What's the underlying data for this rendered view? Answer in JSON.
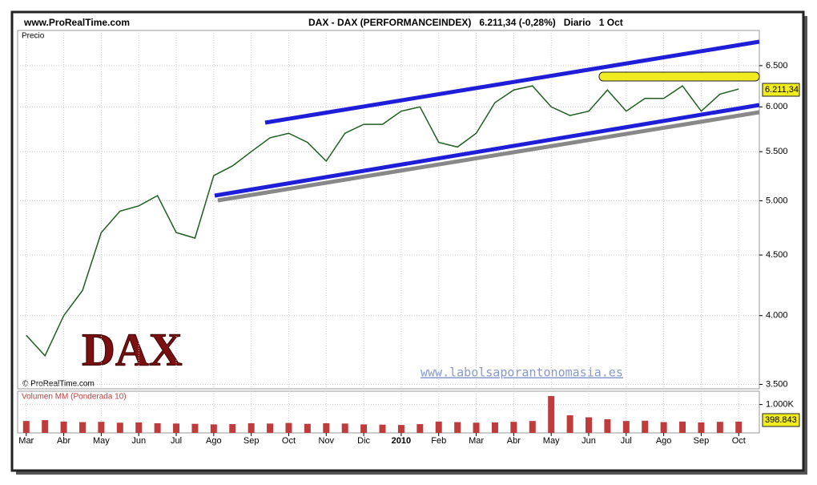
{
  "header": {
    "site": "www.ProRealTime.com",
    "title": "DAX - DAX (PERFORMANCEINDEX)   6.211,34 (-0,28%)   Diario   1 Oct"
  },
  "watermark": {
    "big": "DAX",
    "url": "www.labolsaporantonomasia.es",
    "copyright": "© ProRealTime.com"
  },
  "chart_data": [
    {
      "type": "line",
      "title": "Precio",
      "log_scale": true,
      "grid": true,
      "xlim": [
        -0.23,
        19.55
      ],
      "ylim": [
        3470,
        6960
      ],
      "xticks": [
        {
          "value": 0,
          "label": "Mar"
        },
        {
          "value": 1,
          "label": "Abr"
        },
        {
          "value": 2,
          "label": "May"
        },
        {
          "value": 3,
          "label": "Jun"
        },
        {
          "value": 4,
          "label": "Jul"
        },
        {
          "value": 5,
          "label": "Ago"
        },
        {
          "value": 6,
          "label": "Sep"
        },
        {
          "value": 7,
          "label": "Oct"
        },
        {
          "value": 8,
          "label": "Nov"
        },
        {
          "value": 9,
          "label": "Dic"
        },
        {
          "value": 10,
          "label": "2010"
        },
        {
          "value": 11,
          "label": "Feb"
        },
        {
          "value": 12,
          "label": "Mar"
        },
        {
          "value": 13,
          "label": "Abr"
        },
        {
          "value": 14,
          "label": "May"
        },
        {
          "value": 15,
          "label": "Jun"
        },
        {
          "value": 16,
          "label": "Jul"
        },
        {
          "value": 17,
          "label": "Ago"
        },
        {
          "value": 18,
          "label": "Sep"
        },
        {
          "value": 19,
          "label": "Oct"
        }
      ],
      "yticks": [
        {
          "value": 3500,
          "label": "3.500"
        },
        {
          "value": 4000,
          "label": "4.000"
        },
        {
          "value": 4500,
          "label": "4.500"
        },
        {
          "value": 5000,
          "label": "5.000"
        },
        {
          "value": 5500,
          "label": "5.500"
        },
        {
          "value": 6000,
          "label": "6.000"
        },
        {
          "value": 6500,
          "label": "6.500"
        }
      ],
      "x": [
        0,
        0.5,
        1,
        1.5,
        2,
        2.5,
        3,
        3.5,
        4,
        4.5,
        5,
        5.5,
        6,
        6.5,
        7,
        7.5,
        8,
        8.5,
        9,
        9.5,
        10,
        10.5,
        11,
        11.5,
        12,
        12.5,
        13,
        13.5,
        14,
        14.5,
        15,
        15.5,
        16,
        16.5,
        17,
        17.5,
        18,
        18.5,
        19
      ],
      "series": [
        {
          "name": "DAX",
          "color": "#1f5e1f",
          "values": [
            3850,
            3700,
            4000,
            4200,
            4700,
            4900,
            4950,
            5050,
            4700,
            4650,
            5250,
            5350,
            5500,
            5650,
            5700,
            5600,
            5400,
            5700,
            5800,
            5800,
            5950,
            6000,
            5600,
            5550,
            5700,
            6050,
            6200,
            6250,
            6000,
            5900,
            5950,
            6200,
            5950,
            6100,
            6100,
            6250,
            5950,
            6150,
            6211.34
          ],
          "last_value_label": "6.211,34"
        }
      ]
    },
    {
      "type": "bar",
      "title": "Volumen MM (Ponderada 10)",
      "ylim": [
        0,
        1470000
      ],
      "yticks": [
        {
          "value": 1000000,
          "label": "1.000K"
        }
      ],
      "series": [
        {
          "name": "Volumen",
          "color": "#c03c3c",
          "values": [
            420000,
            450000,
            400000,
            380000,
            390000,
            360000,
            370000,
            340000,
            330000,
            320000,
            300000,
            310000,
            340000,
            330000,
            350000,
            320000,
            340000,
            330000,
            300000,
            290000,
            280000,
            310000,
            400000,
            380000,
            360000,
            370000,
            390000,
            420000,
            1300000,
            620000,
            550000,
            480000,
            420000,
            430000,
            380000,
            400000,
            370000,
            390000,
            398843
          ],
          "last_value_label": "398.843"
        }
      ]
    }
  ]
}
